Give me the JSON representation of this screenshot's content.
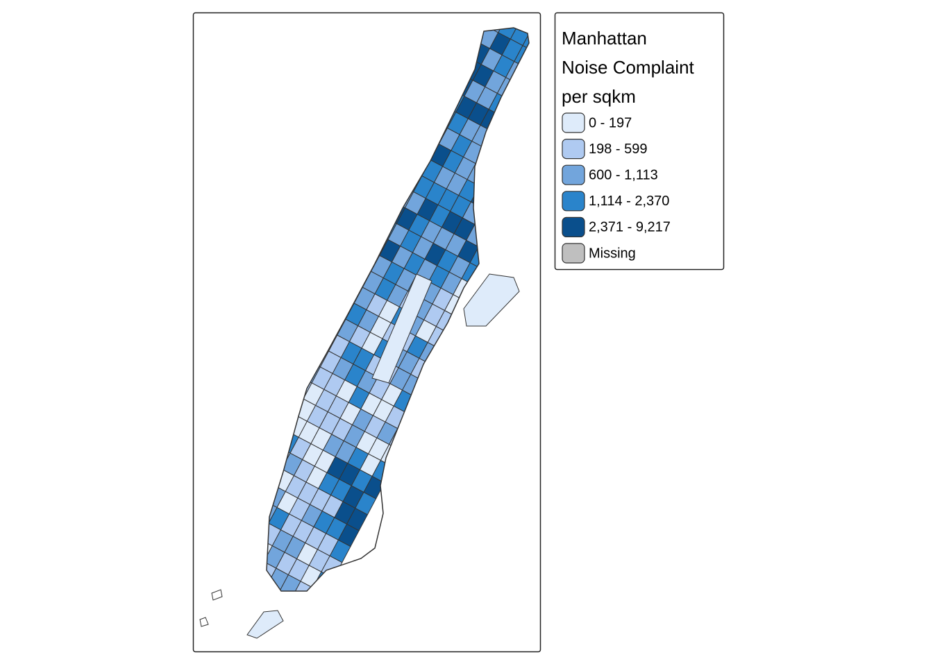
{
  "legend": {
    "title": [
      "Manhattan",
      "Noise Complaint",
      "per sqkm"
    ],
    "items": [
      {
        "label": "0 - 197",
        "color": "#deebfa"
      },
      {
        "label": "198 - 599",
        "color": "#afcaf1"
      },
      {
        "label": "600 - 1,113",
        "color": "#72a5dc"
      },
      {
        "label": "1,114 - 2,370",
        "color": "#2a84cb"
      },
      {
        "label": "2,371 - 9,217",
        "color": "#0a4f8c"
      },
      {
        "label": "Missing",
        "color": "#bfbfbf"
      }
    ]
  }
}
